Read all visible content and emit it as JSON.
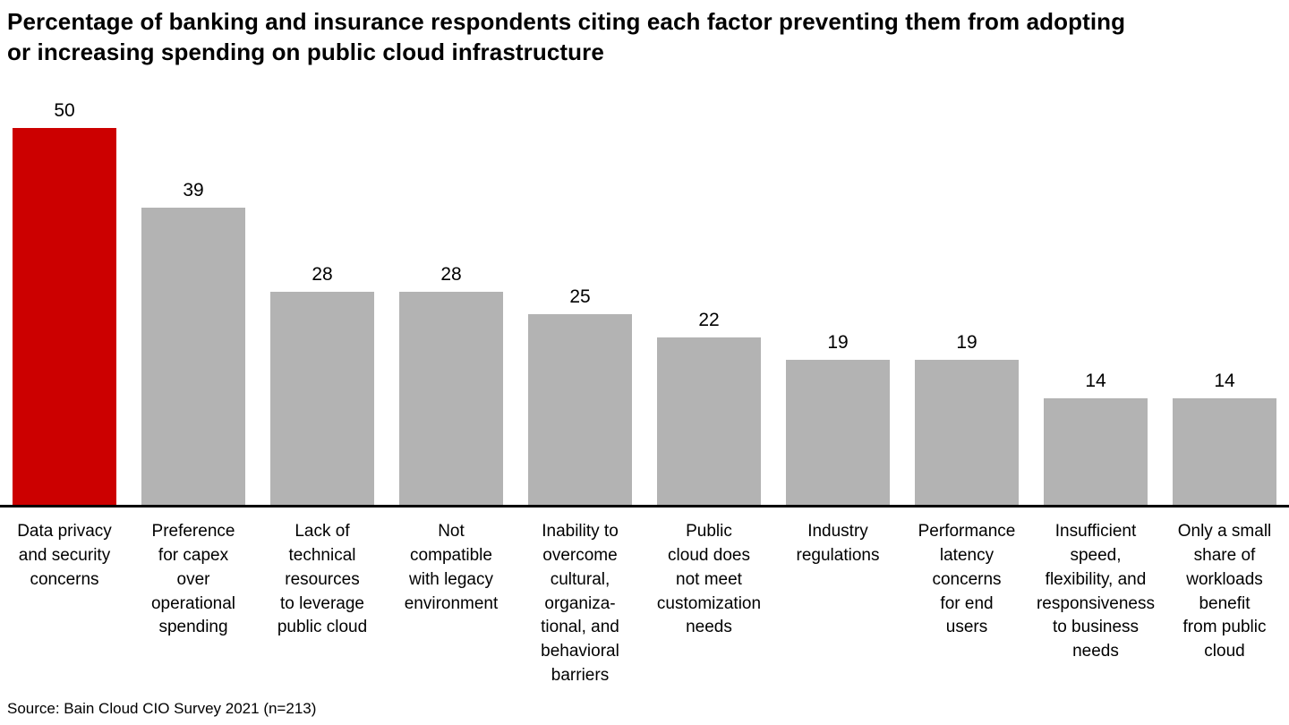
{
  "title": "Percentage of banking and insurance respondents citing each factor preventing them from adopting\nor increasing spending on public cloud infrastructure",
  "source": "Source: Bain Cloud CIO Survey 2021 (n=213)",
  "colors": {
    "highlight": "#cc0000",
    "default": "#b3b3b3",
    "axis": "#000000"
  },
  "chart_data": {
    "type": "bar",
    "title": "Percentage of banking and insurance respondents citing each factor preventing them from adopting or increasing spending on public cloud infrastructure",
    "categories": [
      "Data privacy and security concerns",
      "Preference for capex over operational spending",
      "Lack of technical resources to leverage public cloud",
      "Not compatible with legacy environment",
      "Inability to overcome cultural, organizational, and behavioral barriers",
      "Public cloud does not meet customization needs",
      "Industry regulations",
      "Performance latency concerns for end users",
      "Insufficient speed, flexibility, and responsiveness to business needs",
      "Only a small share of workloads benefit from public cloud"
    ],
    "labels_wrapped": [
      "Data privacy\nand security\nconcerns",
      "Preference\nfor capex\nover\noperational\nspending",
      "Lack of\ntechnical\nresources\nto leverage\npublic cloud",
      "Not\ncompatible\nwith legacy\nenvironment",
      "Inability to\novercome\ncultural,\norganiza-\ntional, and\nbehavioral\nbarriers",
      "Public\ncloud does\nnot meet\ncustomization\nneeds",
      "Industry\nregulations",
      "Performance\nlatency\nconcerns\nfor end\nusers",
      "Insufficient\nspeed,\nflexibility, and\nresponsiveness\nto business\nneeds",
      "Only a small\nshare of\nworkloads\nbenefit\nfrom public\ncloud"
    ],
    "values": [
      50,
      39,
      28,
      28,
      25,
      22,
      19,
      19,
      14,
      14
    ],
    "bar_colors": [
      "#cc0000",
      "#b3b3b3",
      "#b3b3b3",
      "#b3b3b3",
      "#b3b3b3",
      "#b3b3b3",
      "#b3b3b3",
      "#b3b3b3",
      "#b3b3b3",
      "#b3b3b3"
    ],
    "xlabel": "",
    "ylabel": "",
    "ylim": [
      0,
      50
    ],
    "grid": false,
    "legend": false,
    "source": "Source: Bain Cloud CIO Survey 2021 (n=213)"
  }
}
